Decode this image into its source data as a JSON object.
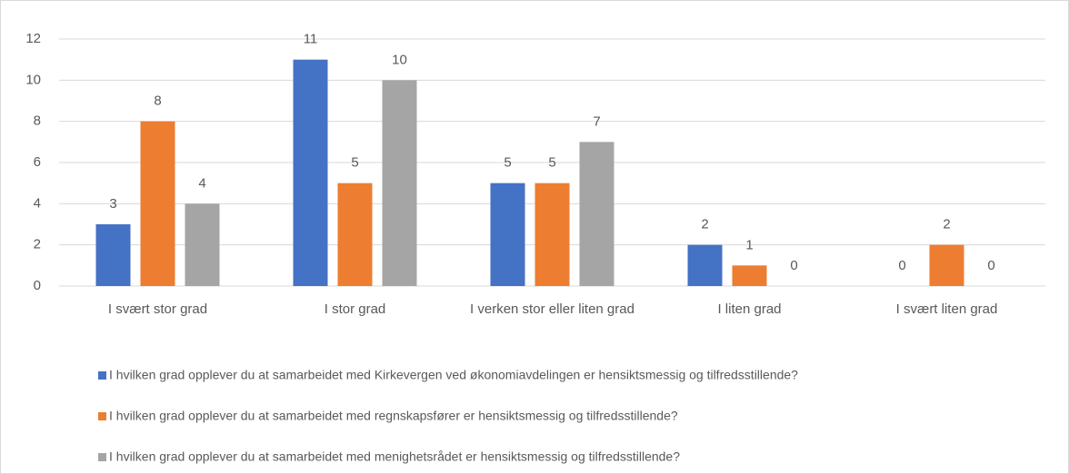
{
  "chart_data": {
    "type": "bar",
    "categories": [
      "I svært stor grad",
      "I stor grad",
      "I verken stor eller liten grad",
      "I liten grad",
      "I svært liten grad"
    ],
    "series": [
      {
        "name": "I hvilken grad opplever du at samarbeidet med Kirkevergen ved økonomiavdelingen er hensiktsmessig og tilfredsstillende?",
        "color": "#4472c4",
        "values": [
          3,
          11,
          5,
          2,
          0
        ]
      },
      {
        "name": "I hvilken grad opplever du at samarbeidet med regnskapsfører er hensiktsmessig og tilfredsstillende?",
        "color": "#ed7d31",
        "values": [
          8,
          5,
          5,
          1,
          2
        ]
      },
      {
        "name": "I hvilken grad opplever du at samarbeidet med menighetsrådet er hensiktsmessig og tilfredsstillende?",
        "color": "#a5a5a5",
        "values": [
          4,
          10,
          7,
          0,
          0
        ]
      }
    ],
    "ylim": [
      0,
      12
    ],
    "yticks": [
      0,
      2,
      4,
      6,
      8,
      10,
      12
    ],
    "grid": true,
    "legend": "bottom"
  }
}
